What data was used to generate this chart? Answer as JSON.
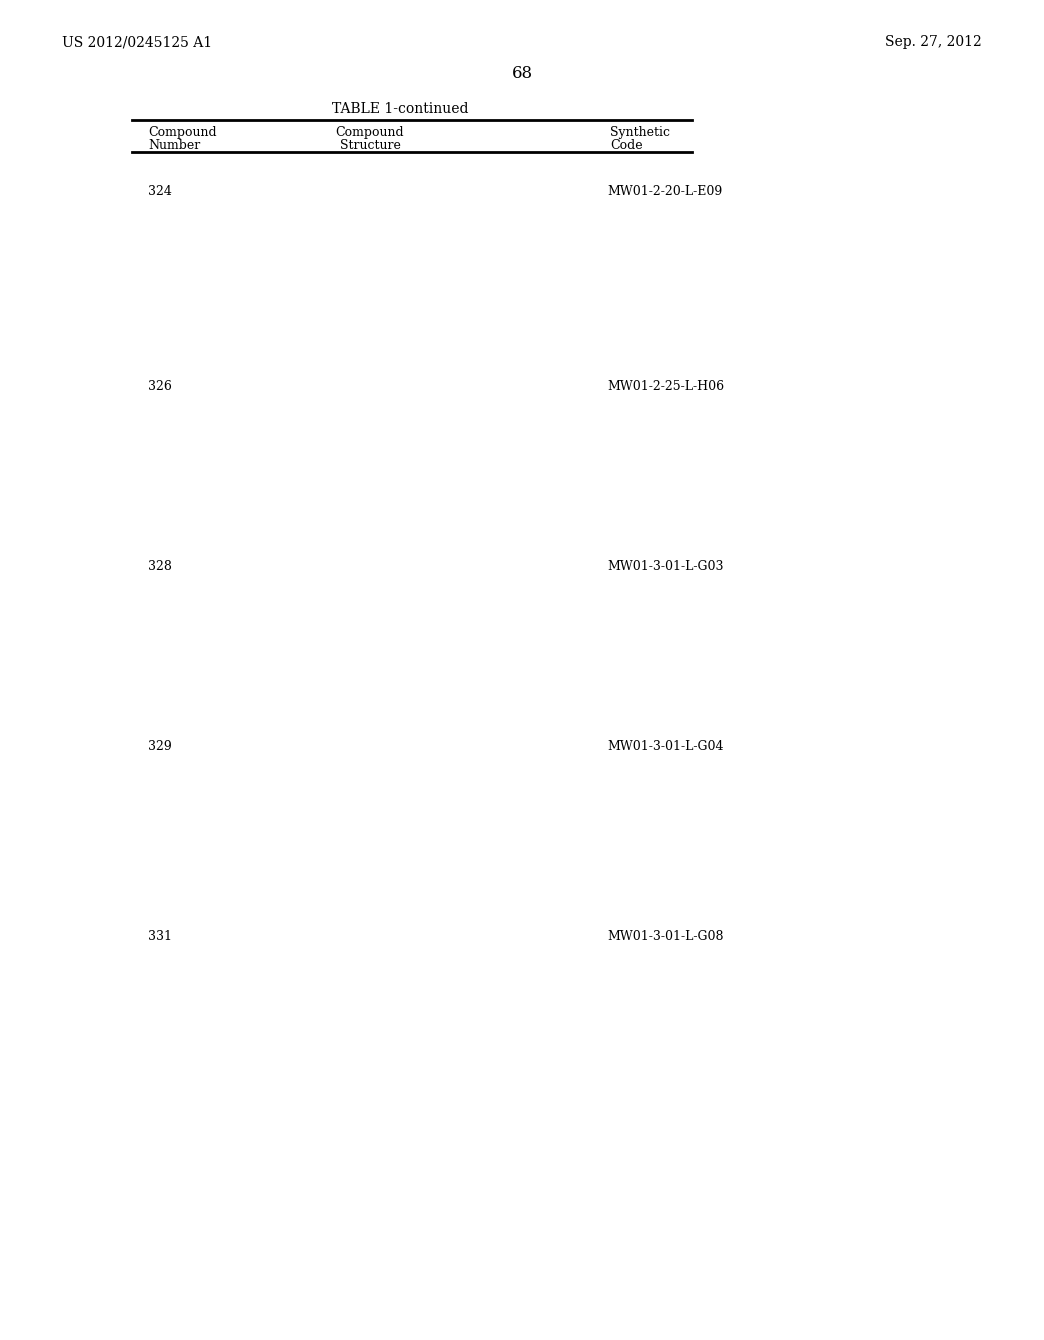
{
  "background_color": "#ffffff",
  "page_number": "68",
  "patent_left": "US 2012/0245125 A1",
  "patent_right": "Sep. 27, 2012",
  "table_title": "TABLE 1-continued",
  "compounds": [
    {
      "number": "324",
      "code": "MW01-2-20-L-E09"
    },
    {
      "number": "326",
      "code": "MW01-2-25-L-H06"
    },
    {
      "number": "328",
      "code": "MW01-3-01-L-G03"
    },
    {
      "number": "329",
      "code": "MW01-3-01-L-G04"
    },
    {
      "number": "331",
      "code": "MW01-3-01-L-G08"
    }
  ]
}
